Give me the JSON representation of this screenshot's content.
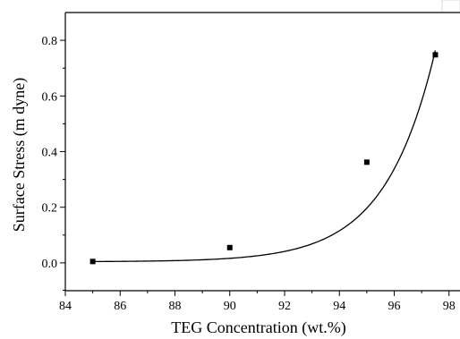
{
  "chart_data": {
    "type": "scatter",
    "xlabel": "TEG Concentration (wt.%)",
    "ylabel": "Surface Stress (m dyne)",
    "xlim": [
      84,
      98.4
    ],
    "ylim": [
      -0.1,
      0.9
    ],
    "x_ticks": [
      84,
      86,
      88,
      90,
      92,
      94,
      96,
      98
    ],
    "y_ticks": [
      0.0,
      0.2,
      0.4,
      0.6,
      0.8
    ],
    "y_tick_labels": [
      "0.0",
      "0.2",
      "0.4",
      "0.6",
      "0.8"
    ],
    "series": [
      {
        "marker": "square",
        "color": "#000000",
        "x": [
          85,
          90,
          95,
          97.5
        ],
        "y": [
          0.005,
          0.055,
          0.362,
          0.748
        ]
      }
    ],
    "fit_curve": "smooth",
    "grid": false,
    "legend": "none"
  }
}
